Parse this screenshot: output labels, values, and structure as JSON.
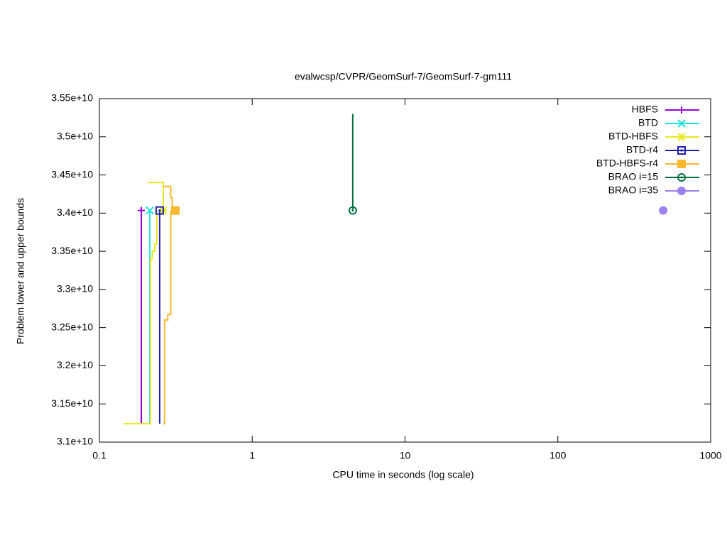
{
  "chart_data": {
    "type": "line",
    "title": "evalwcsp/CVPR/GeomSurf-7/GeomSurf-7-gm111",
    "x_label": "CPU time in seconds (log scale)",
    "y_label": "Problem lower and upper bounds",
    "xlog": true,
    "xlim": [
      0.1,
      1000
    ],
    "xticks": [
      0.1,
      1,
      10,
      100,
      1000
    ],
    "ylim": [
      31000000000,
      35500000000
    ],
    "yticks": [
      {
        "value": 31000000000,
        "label": "3.1e+10"
      },
      {
        "value": 31500000000,
        "label": "3.15e+10"
      },
      {
        "value": 32000000000,
        "label": "3.2e+10"
      },
      {
        "value": 32500000000,
        "label": "3.25e+10"
      },
      {
        "value": 33000000000,
        "label": "3.3e+10"
      },
      {
        "value": 33500000000,
        "label": "3.35e+10"
      },
      {
        "value": 34000000000,
        "label": "3.4e+10"
      },
      {
        "value": 34500000000,
        "label": "3.45e+10"
      },
      {
        "value": 35000000000,
        "label": "3.5e+10"
      },
      {
        "value": 35500000000,
        "label": "3.55e+10"
      }
    ],
    "legend": "top-right",
    "series": [
      {
        "name": "HBFS",
        "color": "#9a00d8",
        "marker": "plus",
        "x": [
          0.188,
          0.188
        ],
        "values": [
          31240000000,
          34035000000
        ]
      },
      {
        "name": "BTD",
        "color": "#20e0e0",
        "marker": "cross",
        "x": [
          0.214,
          0.214
        ],
        "values": [
          31240000000,
          34035000000
        ]
      },
      {
        "name": "BTD-HBFS",
        "color": "#e8e820",
        "marker": "star",
        "x": [
          0.145,
          0.216,
          0.216,
          0.222,
          0.222,
          0.23,
          0.23,
          0.238,
          0.238,
          null,
          0.207,
          0.262,
          0.262
        ],
        "values": [
          31240000000,
          31240000000,
          33400000000,
          33400000000,
          33500000000,
          33500000000,
          33600000000,
          33600000000,
          34035000000,
          null,
          34400000000,
          34400000000,
          34035000000
        ]
      },
      {
        "name": "BTD-r4",
        "color": "#2020b0",
        "marker": "square",
        "x": [
          0.248,
          0.248
        ],
        "values": [
          31240000000,
          34035000000
        ]
      },
      {
        "name": "BTD-HBFS-r4",
        "color": "#f8b830",
        "marker": "filled-square",
        "x": [
          0.262,
          0.267,
          0.267,
          0.28,
          0.28,
          0.293,
          0.293,
          null,
          0.262,
          0.293,
          0.293,
          0.3,
          0.3,
          0.314
        ],
        "values": [
          31240000000,
          31240000000,
          32600000000,
          32600000000,
          32670000000,
          32670000000,
          34035000000,
          null,
          34350000000,
          34350000000,
          34200000000,
          34200000000,
          34035000000,
          34035000000
        ]
      },
      {
        "name": "BRAO i=15",
        "color": "#007040",
        "marker": "circle-dot",
        "x": [
          4.55,
          4.55
        ],
        "values": [
          35300000000,
          34035000000
        ]
      },
      {
        "name": "BRAO i=35",
        "color": "#9b80f0",
        "marker": "filled-circle",
        "x": [
          489
        ],
        "values": [
          34035000000
        ]
      }
    ]
  }
}
